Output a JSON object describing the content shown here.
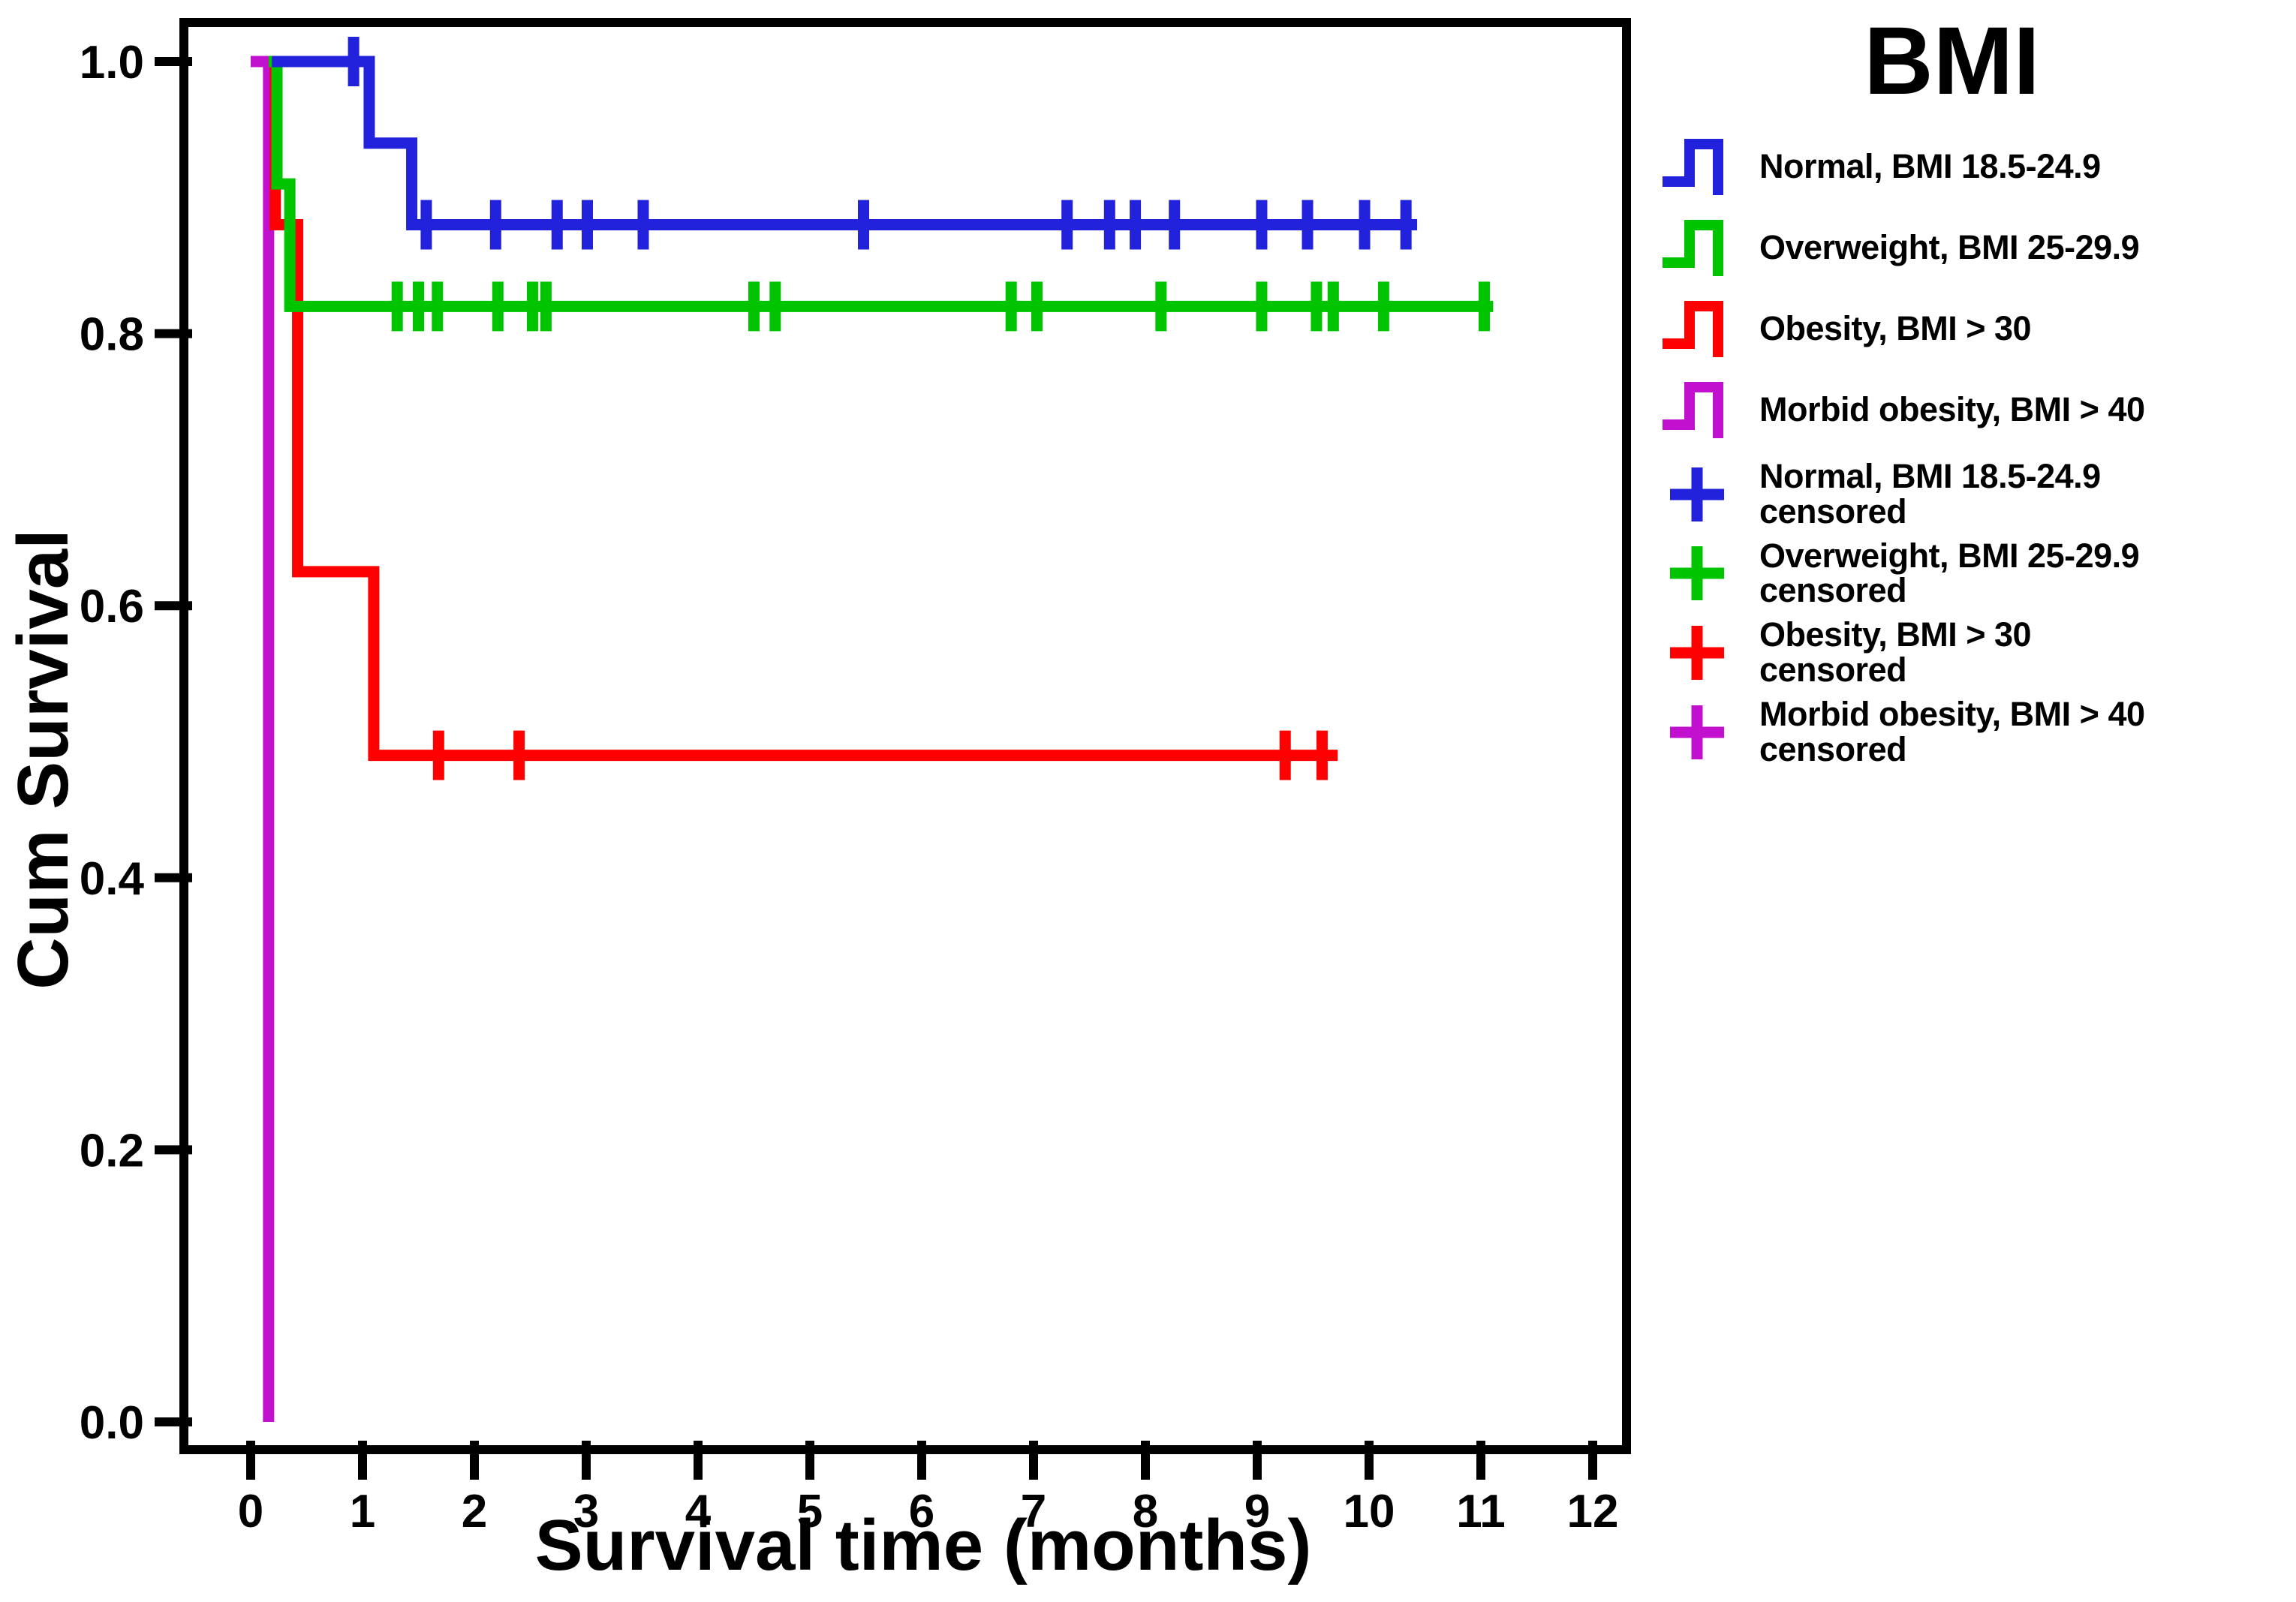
{
  "figure": {
    "y_axis_title": "Cum Survival",
    "x_axis_title": "Survival time (months)",
    "y_tick_labels": [
      "1.0",
      "0.8",
      "0.6",
      "0.4",
      "0.2",
      "0.0"
    ],
    "x_tick_labels": [
      "0",
      "1",
      "2",
      "3",
      "4",
      "5",
      "6",
      "7",
      "8",
      "9",
      "10",
      "11",
      "12"
    ],
    "background_color": "#ffffff",
    "axis_color": "#000000"
  },
  "legend": {
    "title": "BMI",
    "items": [
      {
        "line1": "Normal, BMI 18.5-24.9",
        "line2": "",
        "symbol": "step",
        "color": "#2222dd"
      },
      {
        "line1": "Overweight, BMI 25-29.9",
        "line2": "",
        "symbol": "step",
        "color": "#00c400"
      },
      {
        "line1": "Obesity, BMI > 30",
        "line2": "",
        "symbol": "step",
        "color": "#ff0000"
      },
      {
        "line1": "Morbid obesity, BMI > 40",
        "line2": "",
        "symbol": "step",
        "color": "#c211ce"
      },
      {
        "line1": "Normal, BMI 18.5-24.9",
        "line2": "censored",
        "symbol": "plus",
        "color": "#2222dd"
      },
      {
        "line1": "Overweight, BMI 25-29.9",
        "line2": "censored",
        "symbol": "plus",
        "color": "#00c400"
      },
      {
        "line1": "Obesity, BMI > 30",
        "line2": "censored",
        "symbol": "plus",
        "color": "#ff0000"
      },
      {
        "line1": "Morbid obesity, BMI > 40",
        "line2": "censored",
        "symbol": "plus",
        "color": "#c211ce"
      }
    ]
  },
  "chart_data": {
    "type": "line",
    "subtype": "kaplan-meier-step",
    "title": "BMI",
    "xlabel": "Survival time (months)",
    "ylabel": "Cum Survival",
    "xlim": [
      0,
      12.3
    ],
    "ylim": [
      0.0,
      1.0
    ],
    "grid": false,
    "legend_position": "right",
    "x_ticks": [
      0,
      1,
      2,
      3,
      4,
      5,
      6,
      7,
      8,
      9,
      10,
      11,
      12
    ],
    "y_ticks": [
      1.0,
      0.8,
      0.6,
      0.4,
      0.2,
      0.0
    ],
    "series": [
      {
        "id": "normal",
        "name": "Normal, BMI 18.5-24.9",
        "color": "#2222dd",
        "steps": [
          [
            0.19,
            1.0
          ],
          [
            1.06,
            1.0
          ],
          [
            1.06,
            0.94
          ],
          [
            1.44,
            0.94
          ],
          [
            1.44,
            0.88
          ],
          [
            10.43,
            0.88
          ]
        ],
        "censored": [
          [
            0.92,
            1.0
          ],
          [
            1.57,
            0.88
          ],
          [
            2.19,
            0.88
          ],
          [
            2.74,
            0.88
          ],
          [
            3.01,
            0.88
          ],
          [
            3.51,
            0.88
          ],
          [
            5.48,
            0.88
          ],
          [
            7.3,
            0.88
          ],
          [
            7.68,
            0.88
          ],
          [
            7.91,
            0.88
          ],
          [
            8.26,
            0.88
          ],
          [
            9.04,
            0.88
          ],
          [
            9.45,
            0.88
          ],
          [
            9.96,
            0.88
          ],
          [
            10.33,
            0.88
          ]
        ]
      },
      {
        "id": "overweight",
        "name": "Overweight, BMI 25-29.9",
        "color": "#00c400",
        "steps": [
          [
            0.16,
            1.0
          ],
          [
            0.235,
            1.0
          ],
          [
            0.235,
            0.91
          ],
          [
            0.35,
            0.91
          ],
          [
            0.35,
            0.82
          ],
          [
            11.11,
            0.82
          ]
        ],
        "censored": [
          [
            1.31,
            0.82
          ],
          [
            1.5,
            0.82
          ],
          [
            1.67,
            0.82
          ],
          [
            2.21,
            0.82
          ],
          [
            2.52,
            0.82
          ],
          [
            2.64,
            0.82
          ],
          [
            4.5,
            0.82
          ],
          [
            4.69,
            0.82
          ],
          [
            6.8,
            0.82
          ],
          [
            7.03,
            0.82
          ],
          [
            8.14,
            0.82
          ],
          [
            9.04,
            0.82
          ],
          [
            9.53,
            0.82
          ],
          [
            9.68,
            0.82
          ],
          [
            10.13,
            0.82
          ],
          [
            11.03,
            0.82
          ]
        ]
      },
      {
        "id": "obesity",
        "name": "Obesity, BMI > 30",
        "color": "#ff0000",
        "steps": [
          [
            0.16,
            1.0
          ],
          [
            0.22,
            1.0
          ],
          [
            0.22,
            0.88
          ],
          [
            0.42,
            0.88
          ],
          [
            0.42,
            0.625
          ],
          [
            1.1,
            0.625
          ],
          [
            1.1,
            0.49
          ],
          [
            9.72,
            0.49
          ]
        ],
        "censored": [
          [
            1.68,
            0.49
          ],
          [
            2.4,
            0.49
          ],
          [
            9.25,
            0.49
          ],
          [
            9.58,
            0.49
          ]
        ]
      },
      {
        "id": "morbid-obesity",
        "name": "Morbid obesity, BMI > 40",
        "color": "#c211ce",
        "steps": [
          [
            0.0,
            1.0
          ],
          [
            0.16,
            1.0
          ],
          [
            0.16,
            0.0
          ]
        ],
        "censored": []
      }
    ]
  }
}
